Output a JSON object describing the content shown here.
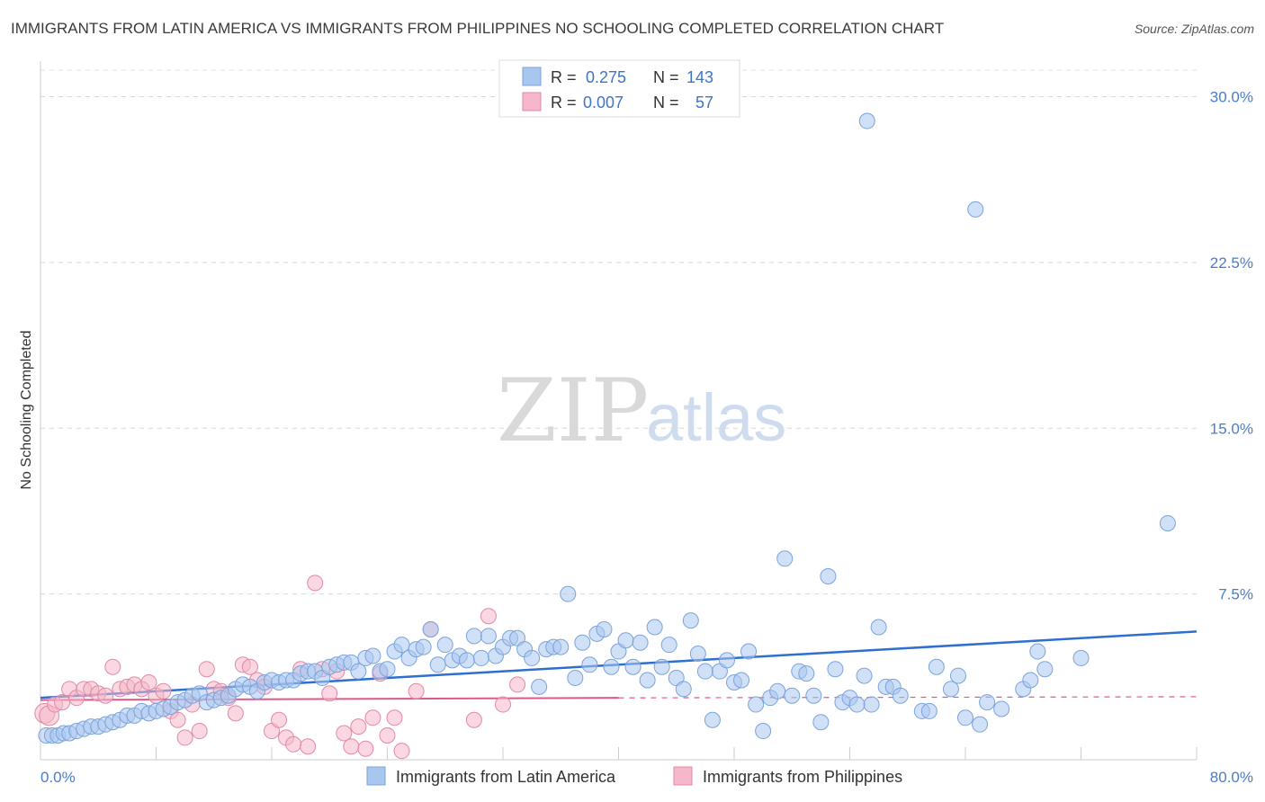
{
  "title": "IMMIGRANTS FROM LATIN AMERICA VS IMMIGRANTS FROM PHILIPPINES NO SCHOOLING COMPLETED CORRELATION CHART",
  "source": "Source: ZipAtlas.com",
  "watermark": {
    "part1": "ZIP",
    "part2": "atlas"
  },
  "stats_legend": [
    {
      "r_label": "R =",
      "r_value": "0.275",
      "n_label": "N =",
      "n_value": "143",
      "color": "#a9c6ef"
    },
    {
      "r_label": "R =",
      "r_value": "0.007",
      "n_label": "N =",
      "n_value": "57",
      "color": "#f5b7c9"
    }
  ],
  "chart_data": {
    "type": "scatter",
    "title": "IMMIGRANTS FROM LATIN AMERICA VS IMMIGRANTS FROM PHILIPPINES NO SCHOOLING COMPLETED CORRELATION CHART",
    "xlabel": "",
    "ylabel": "No Schooling Completed",
    "xlim": [
      0,
      80
    ],
    "ylim": [
      0,
      31.2
    ],
    "x_tick_labels": [
      "0.0%",
      "80.0%"
    ],
    "y_ticks": [
      7.5,
      15.0,
      22.5,
      30.0
    ],
    "y_tick_labels": [
      "7.5%",
      "15.0%",
      "22.5%",
      "30.0%"
    ],
    "grid": "horizontal dashed",
    "legend_position": "bottom-center",
    "series": [
      {
        "name": "Immigrants from Latin America",
        "color": "#a9c6ef",
        "stroke": "#7aa3dd",
        "trend": {
          "x": [
            0,
            80
          ],
          "y": [
            2.8,
            5.8
          ],
          "color": "#2f6fd0",
          "dashed_from": null
        },
        "points": [
          [
            0.4,
            1.1
          ],
          [
            0.8,
            1.1
          ],
          [
            1.2,
            1.1
          ],
          [
            1.6,
            1.2
          ],
          [
            2.0,
            1.2
          ],
          [
            2.5,
            1.3
          ],
          [
            3.0,
            1.4
          ],
          [
            3.5,
            1.5
          ],
          [
            4.0,
            1.5
          ],
          [
            4.5,
            1.6
          ],
          [
            5.0,
            1.7
          ],
          [
            5.5,
            1.8
          ],
          [
            6.0,
            2.0
          ],
          [
            6.5,
            2.0
          ],
          [
            7.0,
            2.2
          ],
          [
            7.5,
            2.1
          ],
          [
            8.0,
            2.2
          ],
          [
            8.5,
            2.3
          ],
          [
            9.0,
            2.4
          ],
          [
            9.5,
            2.6
          ],
          [
            10.0,
            2.7
          ],
          [
            10.5,
            2.9
          ],
          [
            11.0,
            3.0
          ],
          [
            11.5,
            2.6
          ],
          [
            12.0,
            2.7
          ],
          [
            12.5,
            2.8
          ],
          [
            13.0,
            2.9
          ],
          [
            13.5,
            3.2
          ],
          [
            14.0,
            3.4
          ],
          [
            14.5,
            3.3
          ],
          [
            15.0,
            3.1
          ],
          [
            15.5,
            3.5
          ],
          [
            16.0,
            3.6
          ],
          [
            16.5,
            3.5
          ],
          [
            17.0,
            3.6
          ],
          [
            17.5,
            3.6
          ],
          [
            18.0,
            3.9
          ],
          [
            18.5,
            4.0
          ],
          [
            19.0,
            4.0
          ],
          [
            19.5,
            3.7
          ],
          [
            20.0,
            4.2
          ],
          [
            20.5,
            4.3
          ],
          [
            21.0,
            4.4
          ],
          [
            21.5,
            4.4
          ],
          [
            22.0,
            4.0
          ],
          [
            22.5,
            4.6
          ],
          [
            23.0,
            4.7
          ],
          [
            23.5,
            4.0
          ],
          [
            24.0,
            4.1
          ],
          [
            24.5,
            4.9
          ],
          [
            25.0,
            5.2
          ],
          [
            25.5,
            4.6
          ],
          [
            26.0,
            5.0
          ],
          [
            26.5,
            5.1
          ],
          [
            27.0,
            5.9
          ],
          [
            27.5,
            4.3
          ],
          [
            28.0,
            5.2
          ],
          [
            28.5,
            4.5
          ],
          [
            29.0,
            4.7
          ],
          [
            29.5,
            4.5
          ],
          [
            30.0,
            5.6
          ],
          [
            30.5,
            4.6
          ],
          [
            31.0,
            5.6
          ],
          [
            31.5,
            4.7
          ],
          [
            32.0,
            5.1
          ],
          [
            32.5,
            5.5
          ],
          [
            33.0,
            5.5
          ],
          [
            33.5,
            5.0
          ],
          [
            34.0,
            4.6
          ],
          [
            34.5,
            3.3
          ],
          [
            35.0,
            5.0
          ],
          [
            35.5,
            5.1
          ],
          [
            36.0,
            5.1
          ],
          [
            36.5,
            7.5
          ],
          [
            37.0,
            3.7
          ],
          [
            37.5,
            5.3
          ],
          [
            38.0,
            4.3
          ],
          [
            38.5,
            5.7
          ],
          [
            39.0,
            5.9
          ],
          [
            39.5,
            4.2
          ],
          [
            40.0,
            4.9
          ],
          [
            40.5,
            5.4
          ],
          [
            41.0,
            4.2
          ],
          [
            41.5,
            5.3
          ],
          [
            42.0,
            3.6
          ],
          [
            42.5,
            6.0
          ],
          [
            43.0,
            4.2
          ],
          [
            43.5,
            5.2
          ],
          [
            44.0,
            3.7
          ],
          [
            44.5,
            3.2
          ],
          [
            45.0,
            6.3
          ],
          [
            45.5,
            4.8
          ],
          [
            46.0,
            4.0
          ],
          [
            46.5,
            1.8
          ],
          [
            47.0,
            4.0
          ],
          [
            47.5,
            4.5
          ],
          [
            48.0,
            3.5
          ],
          [
            48.5,
            3.6
          ],
          [
            49.0,
            4.9
          ],
          [
            49.5,
            2.5
          ],
          [
            50.0,
            1.3
          ],
          [
            50.5,
            2.8
          ],
          [
            51.0,
            3.1
          ],
          [
            51.5,
            9.1
          ],
          [
            52.0,
            2.9
          ],
          [
            52.5,
            4.0
          ],
          [
            53.0,
            3.9
          ],
          [
            53.5,
            2.9
          ],
          [
            54.0,
            1.7
          ],
          [
            54.5,
            8.3
          ],
          [
            55.0,
            4.1
          ],
          [
            55.5,
            2.6
          ],
          [
            56.0,
            2.8
          ],
          [
            56.5,
            2.5
          ],
          [
            57.0,
            3.8
          ],
          [
            57.5,
            2.5
          ],
          [
            58.0,
            6.0
          ],
          [
            58.5,
            3.3
          ],
          [
            59.0,
            3.3
          ],
          [
            59.5,
            2.9
          ],
          [
            61.0,
            2.2
          ],
          [
            61.5,
            2.2
          ],
          [
            62.0,
            4.2
          ],
          [
            63.0,
            3.2
          ],
          [
            63.5,
            3.8
          ],
          [
            64.0,
            1.9
          ],
          [
            65.0,
            1.6
          ],
          [
            65.5,
            2.6
          ],
          [
            66.5,
            2.3
          ],
          [
            68.0,
            3.2
          ],
          [
            68.5,
            3.6
          ],
          [
            69.0,
            4.9
          ],
          [
            69.5,
            4.1
          ],
          [
            72.0,
            4.6
          ],
          [
            78.0,
            10.7
          ],
          [
            57.2,
            28.9
          ],
          [
            64.7,
            24.9
          ]
        ]
      },
      {
        "name": "Immigrants from Philippines",
        "color": "#f5b7c9",
        "stroke": "#e08aa6",
        "trend": {
          "x": [
            0,
            40,
            80
          ],
          "y": [
            2.7,
            2.8,
            2.85
          ],
          "color": "#e0588a",
          "dashed_from": 40
        },
        "points": [
          [
            0.3,
            2.1
          ],
          [
            0.6,
            2.0
          ],
          [
            1.0,
            2.5
          ],
          [
            1.5,
            2.6
          ],
          [
            2.0,
            3.2
          ],
          [
            2.5,
            2.8
          ],
          [
            3.0,
            3.2
          ],
          [
            3.5,
            3.2
          ],
          [
            4.0,
            3.0
          ],
          [
            4.5,
            2.9
          ],
          [
            5.0,
            4.2
          ],
          [
            5.5,
            3.2
          ],
          [
            6.0,
            3.3
          ],
          [
            6.5,
            3.4
          ],
          [
            7.0,
            3.2
          ],
          [
            7.5,
            3.5
          ],
          [
            8.0,
            2.9
          ],
          [
            8.5,
            3.1
          ],
          [
            9.0,
            2.2
          ],
          [
            9.5,
            1.8
          ],
          [
            10.0,
            1.0
          ],
          [
            10.5,
            2.5
          ],
          [
            11.0,
            1.3
          ],
          [
            11.5,
            4.1
          ],
          [
            12.0,
            3.2
          ],
          [
            12.5,
            3.1
          ],
          [
            13.0,
            2.8
          ],
          [
            13.5,
            2.1
          ],
          [
            14.0,
            4.3
          ],
          [
            14.5,
            4.2
          ],
          [
            15.0,
            3.6
          ],
          [
            15.5,
            3.3
          ],
          [
            16.0,
            1.3
          ],
          [
            16.5,
            1.8
          ],
          [
            17.0,
            1.0
          ],
          [
            17.5,
            0.7
          ],
          [
            18.0,
            4.1
          ],
          [
            18.5,
            0.6
          ],
          [
            19.0,
            8.0
          ],
          [
            19.5,
            4.1
          ],
          [
            20.0,
            3.0
          ],
          [
            20.5,
            4.0
          ],
          [
            21.0,
            1.2
          ],
          [
            21.5,
            0.6
          ],
          [
            22.0,
            1.5
          ],
          [
            22.5,
            0.5
          ],
          [
            23.0,
            1.9
          ],
          [
            23.5,
            3.9
          ],
          [
            24.0,
            1.1
          ],
          [
            24.5,
            1.9
          ],
          [
            25.0,
            0.4
          ],
          [
            26.0,
            3.1
          ],
          [
            27.0,
            5.9
          ],
          [
            30.0,
            1.8
          ],
          [
            31.0,
            6.5
          ],
          [
            32.0,
            2.5
          ],
          [
            33.0,
            3.4
          ]
        ]
      }
    ]
  },
  "legend_bottom": [
    {
      "label": "Immigrants from Latin America",
      "color": "#a9c6ef"
    },
    {
      "label": "Immigrants from Philippines",
      "color": "#f5b7c9"
    }
  ]
}
